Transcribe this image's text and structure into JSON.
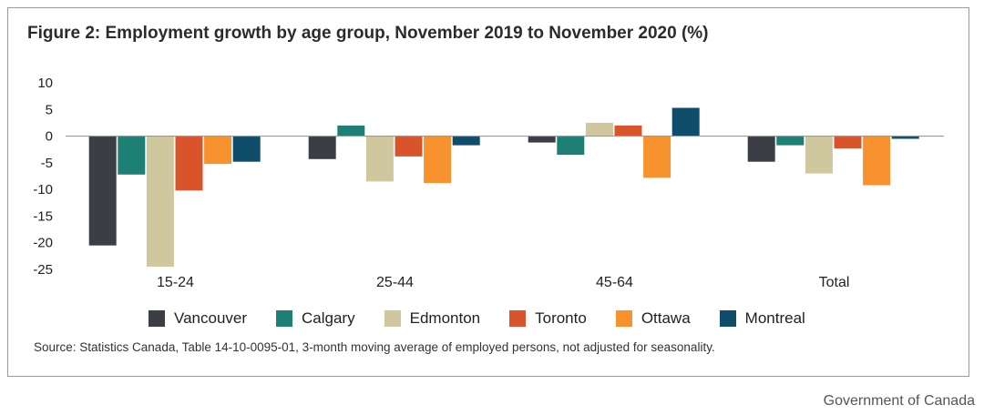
{
  "chart_data": {
    "type": "bar",
    "title": "Figure 2: Employment growth by age group, November 2019 to November 2020 (%)",
    "categories": [
      "15-24",
      "25-44",
      "45-64",
      "Total"
    ],
    "ylim": [
      -25,
      10
    ],
    "yticks": [
      10,
      5,
      0,
      -5,
      -10,
      -15,
      -20,
      -25
    ],
    "legend_position": "bottom",
    "grid": false,
    "series": [
      {
        "name": "Vancouver",
        "color": "#3b3f45",
        "values": [
          -20.5,
          -4.3,
          -1.2,
          -4.8
        ]
      },
      {
        "name": "Calgary",
        "color": "#1e7f74",
        "values": [
          -7.2,
          2.0,
          -3.5,
          -1.7
        ]
      },
      {
        "name": "Edmonton",
        "color": "#cfc79e",
        "values": [
          -24.5,
          -8.5,
          2.5,
          -7.0
        ]
      },
      {
        "name": "Toronto",
        "color": "#d9542b",
        "values": [
          -10.2,
          -3.8,
          2.0,
          -2.3
        ]
      },
      {
        "name": "Ottawa",
        "color": "#f7922f",
        "values": [
          -5.2,
          -8.8,
          -7.8,
          -9.2
        ]
      },
      {
        "name": "Montreal",
        "color": "#0f4d6b",
        "values": [
          -4.8,
          -1.7,
          5.3,
          -0.5
        ]
      }
    ]
  },
  "source": "Source: Statistics Canada, Table 14-10-0095-01, 3-month moving average of employed persons, not adjusted for seasonality.",
  "credit": "Government of Canada"
}
